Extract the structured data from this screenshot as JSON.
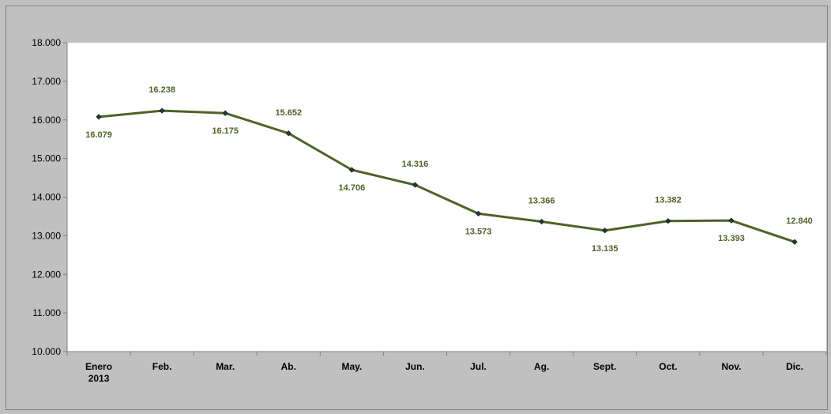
{
  "chart_data": {
    "type": "line",
    "title": "",
    "xlabel": "",
    "ylabel": "",
    "categories": [
      [
        "Enero",
        "2013"
      ],
      [
        "Feb."
      ],
      [
        "Mar."
      ],
      [
        "Ab."
      ],
      [
        "May."
      ],
      [
        "Jun."
      ],
      [
        "Jul."
      ],
      [
        "Ag."
      ],
      [
        "Sept."
      ],
      [
        "Oct."
      ],
      [
        "Nov."
      ],
      [
        "Dic."
      ]
    ],
    "values": [
      16079,
      16238,
      16175,
      15652,
      14706,
      14316,
      13573,
      13366,
      13135,
      13382,
      13393,
      12840
    ],
    "value_labels": [
      "16.079",
      "16.238",
      "16.175",
      "15.652",
      "14.706",
      "14.316",
      "13.573",
      "13.366",
      "13.135",
      "13.382",
      "13.393",
      "12.840"
    ],
    "label_positions": [
      "below",
      "above",
      "below",
      "above",
      "below",
      "above",
      "below",
      "above",
      "below",
      "above",
      "below",
      "above"
    ],
    "ylim": [
      10000,
      18000
    ],
    "yticks": [
      10000,
      11000,
      12000,
      13000,
      14000,
      15000,
      16000,
      17000,
      18000
    ],
    "ytick_labels": [
      "10.000",
      "11.000",
      "12.000",
      "13.000",
      "14.000",
      "15.000",
      "16.000",
      "17.000",
      "18.000"
    ],
    "grid": false,
    "legend": "none",
    "colors": {
      "line": "#4f6228",
      "marker": "#1f3b3b",
      "label": "#4f6228",
      "plot_bg": "#ffffff",
      "chart_bg": "#c0c0c0"
    }
  }
}
